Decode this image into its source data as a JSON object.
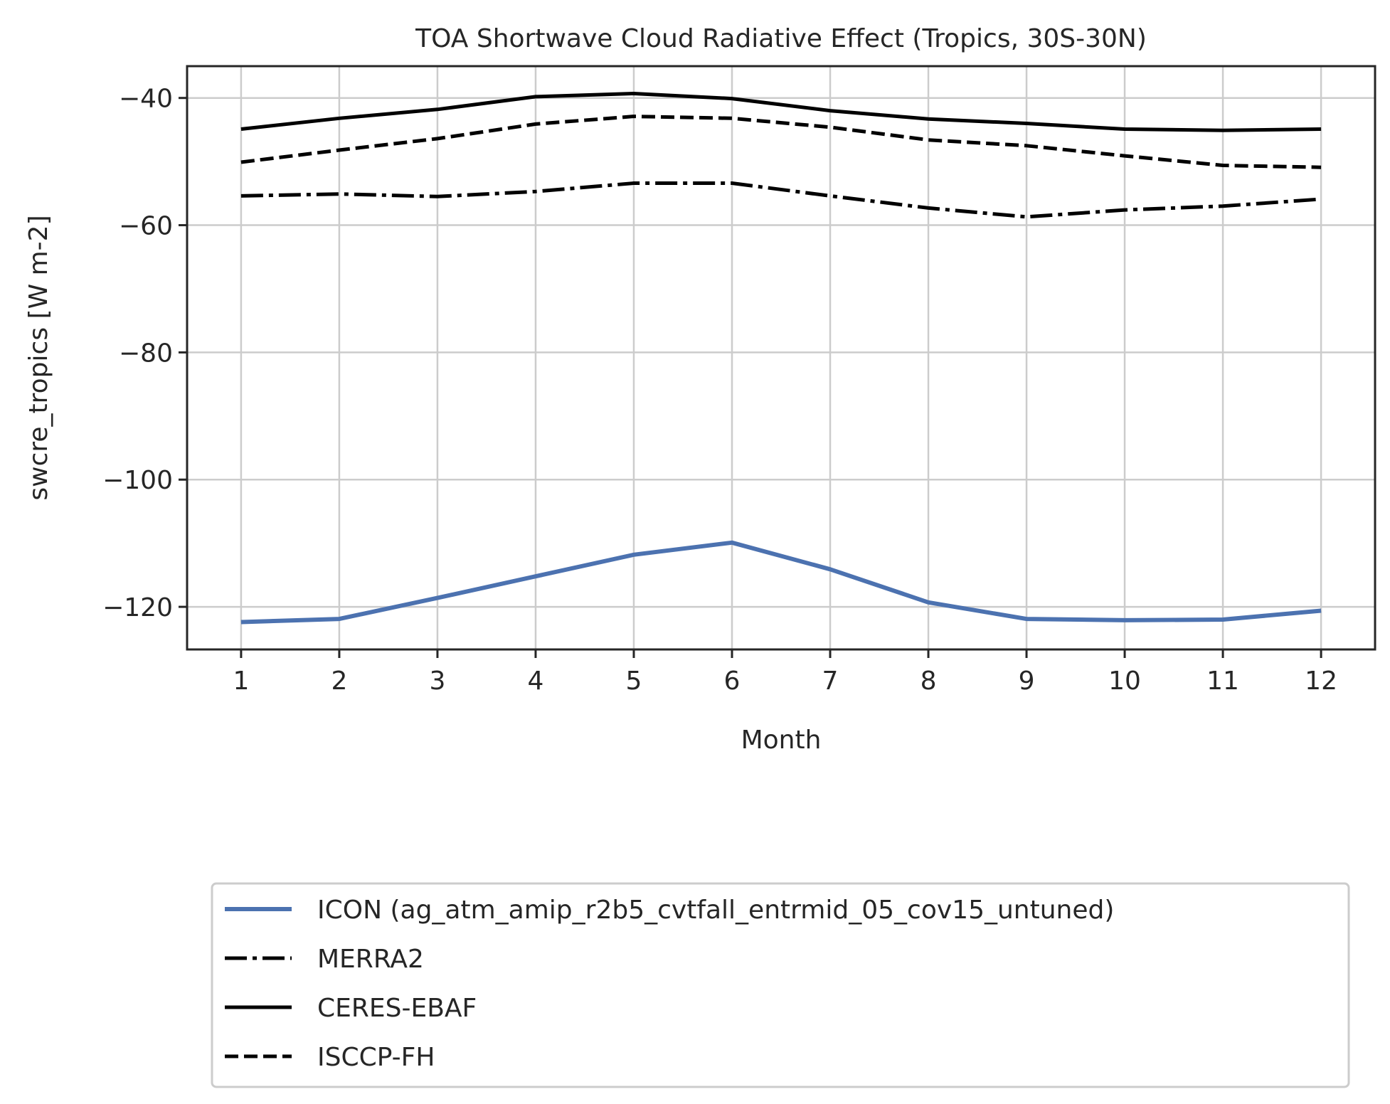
{
  "chart_data": {
    "type": "line",
    "title": "TOA Shortwave Cloud Radiative Effect (Tropics, 30S-30N)",
    "xlabel": "Month",
    "ylabel": "swcre_tropics [W m-2]",
    "x": [
      1,
      2,
      3,
      4,
      5,
      6,
      7,
      8,
      9,
      10,
      11,
      12
    ],
    "xlim": [
      0.45,
      12.55
    ],
    "ylim": [
      -126.7,
      -35.0
    ],
    "yticks": [
      -40,
      -60,
      -80,
      -100,
      -120
    ],
    "ytick_labels": [
      "−40",
      "−60",
      "−80",
      "−100",
      "−120"
    ],
    "xtick_labels": [
      "1",
      "2",
      "3",
      "4",
      "5",
      "6",
      "7",
      "8",
      "9",
      "10",
      "11",
      "12"
    ],
    "grid": true,
    "legend_position": "below plot",
    "series": [
      {
        "name": "ICON (ag_atm_amip_r2b5_cvtfall_entrmid_05_cov15_untuned)",
        "color": "#4c72b0",
        "style": "solid",
        "values": [
          -122.4,
          -121.9,
          -118.6,
          -115.2,
          -111.8,
          -109.9,
          -114.1,
          -119.3,
          -121.9,
          -122.1,
          -122.0,
          -120.6
        ]
      },
      {
        "name": "MERRA2",
        "color": "#000000",
        "style": "dashdot",
        "values": [
          -55.4,
          -55.1,
          -55.5,
          -54.7,
          -53.4,
          -53.4,
          -55.4,
          -57.3,
          -58.7,
          -57.6,
          -57.0,
          -55.9
        ]
      },
      {
        "name": "CERES-EBAF",
        "color": "#000000",
        "style": "solid",
        "values": [
          -44.9,
          -43.2,
          -41.8,
          -39.8,
          -39.3,
          -40.1,
          -42.0,
          -43.3,
          -44.0,
          -44.9,
          -45.1,
          -44.9
        ]
      },
      {
        "name": "ISCCP-FH",
        "color": "#000000",
        "style": "dashed",
        "values": [
          -50.1,
          -48.2,
          -46.4,
          -44.1,
          -42.9,
          -43.2,
          -44.6,
          -46.6,
          -47.5,
          -49.1,
          -50.6,
          -50.9
        ]
      }
    ]
  }
}
